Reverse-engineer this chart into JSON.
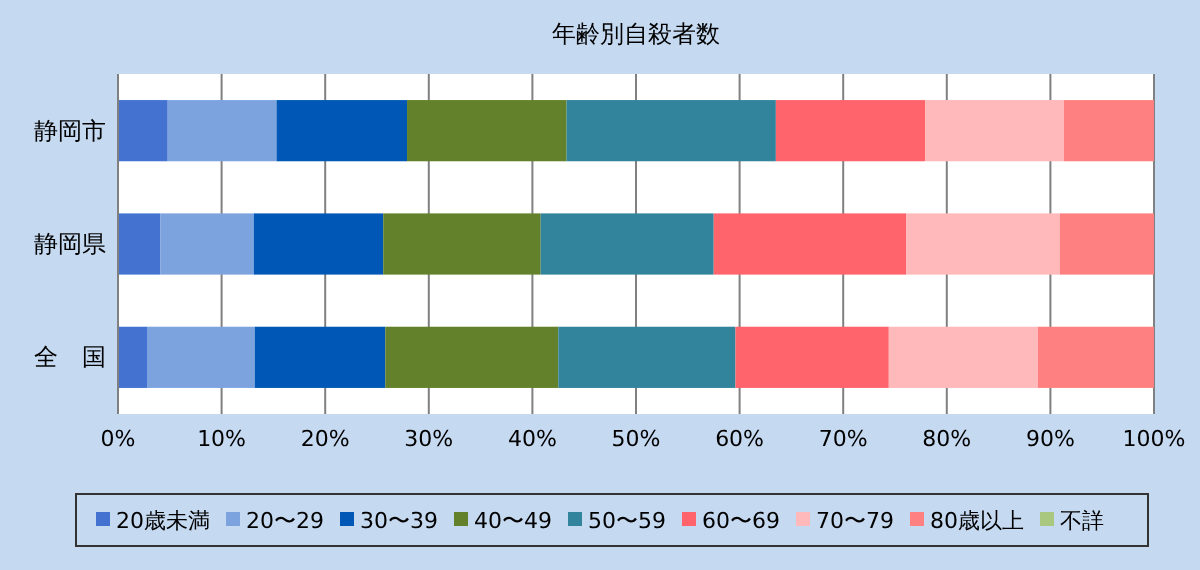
{
  "chart_data": {
    "type": "bar",
    "orientation": "horizontal",
    "stacked": true,
    "title": "年齢別自殺者数",
    "categories": [
      "静岡市",
      "静岡県",
      "全　国"
    ],
    "series": [
      {
        "name": "20歳未満",
        "color": "#4472d0",
        "values": [
          4.8,
          4.1,
          2.8
        ]
      },
      {
        "name": "20〜29",
        "color": "#7ca3de",
        "values": [
          10.5,
          9.0,
          10.4
        ]
      },
      {
        "name": "30〜39",
        "color": "#0057b5",
        "values": [
          12.6,
          12.5,
          12.6
        ]
      },
      {
        "name": "40〜49",
        "color": "#63802a",
        "values": [
          15.4,
          15.2,
          16.7
        ]
      },
      {
        "name": "50〜59",
        "color": "#31849b",
        "values": [
          20.2,
          16.7,
          17.1
        ]
      },
      {
        "name": "60〜69",
        "color": "#ff646d",
        "values": [
          14.4,
          18.6,
          14.8
        ]
      },
      {
        "name": "70〜79",
        "color": "#ffb9bb",
        "values": [
          13.4,
          14.8,
          14.4
        ]
      },
      {
        "name": "80歳以上",
        "color": "#ff8080",
        "values": [
          8.7,
          9.1,
          11.2
        ]
      },
      {
        "name": "不詳",
        "color": "#a9c77e",
        "values": [
          0,
          0,
          0
        ]
      }
    ],
    "xlim": [
      0,
      100
    ],
    "xticks": [
      {
        "value": 0,
        "label": "0%"
      },
      {
        "value": 10,
        "label": "10%"
      },
      {
        "value": 20,
        "label": "20%"
      },
      {
        "value": 30,
        "label": "30%"
      },
      {
        "value": 40,
        "label": "40%"
      },
      {
        "value": 50,
        "label": "50%"
      },
      {
        "value": 60,
        "label": "60%"
      },
      {
        "value": 70,
        "label": "70%"
      },
      {
        "value": 80,
        "label": "80%"
      },
      {
        "value": 90,
        "label": "90%"
      },
      {
        "value": 100,
        "label": "100%"
      }
    ],
    "grid": "x",
    "legend": "bottom"
  }
}
